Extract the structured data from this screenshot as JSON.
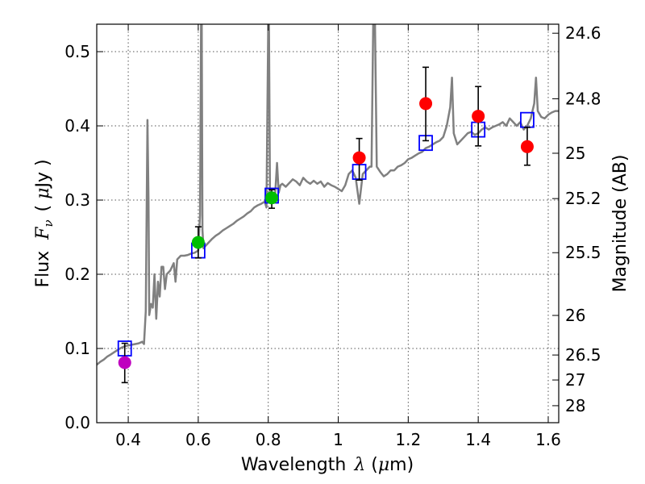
{
  "chart_data": {
    "type": "line",
    "xlabel_prefix": "Wavelength",
    "xlabel_symbol": "λ",
    "xlabel_unit_open": " (",
    "xlabel_unit_mu": "μ",
    "xlabel_unit_rest": "m)",
    "ylabel_prefix": "Flux",
    "ylabel_symbol": "F",
    "ylabel_subscript": "ν",
    "ylabel_unit_open": "( ",
    "ylabel_unit_mu": "μ",
    "ylabel_unit_rest": "Jy )",
    "y2label": "Magnitude (AB)",
    "xlim": [
      0.31,
      1.63
    ],
    "ylim": [
      0.0,
      0.537
    ],
    "grid": true,
    "xticks": [
      {
        "value": 0.4,
        "label": "0.4"
      },
      {
        "value": 0.6,
        "label": "0.6"
      },
      {
        "value": 0.8,
        "label": "0.8"
      },
      {
        "value": 1.0,
        "label": "1"
      },
      {
        "value": 1.2,
        "label": "1.2"
      },
      {
        "value": 1.4,
        "label": "1.4"
      },
      {
        "value": 1.6,
        "label": "1.6"
      }
    ],
    "yticks": [
      {
        "value": 0.0,
        "label": "0.0"
      },
      {
        "value": 0.1,
        "label": "0.1"
      },
      {
        "value": 0.2,
        "label": "0.2"
      },
      {
        "value": 0.3,
        "label": "0.3"
      },
      {
        "value": 0.4,
        "label": "0.4"
      },
      {
        "value": 0.5,
        "label": "0.5"
      }
    ],
    "y2ticks": [
      {
        "value": 24.6,
        "label": "24.6"
      },
      {
        "value": 24.8,
        "label": "24.8"
      },
      {
        "value": 25.0,
        "label": "25"
      },
      {
        "value": 25.2,
        "label": "25.2"
      },
      {
        "value": 25.5,
        "label": "25.5"
      },
      {
        "value": 26.0,
        "label": "26"
      },
      {
        "value": 26.5,
        "label": "26.5"
      },
      {
        "value": 27.0,
        "label": "27"
      },
      {
        "value": 28.0,
        "label": "28"
      }
    ],
    "model_spectrum": {
      "color": "#808080",
      "x": [
        0.31,
        0.32,
        0.33,
        0.34,
        0.35,
        0.36,
        0.37,
        0.38,
        0.39,
        0.4,
        0.41,
        0.42,
        0.43,
        0.44,
        0.445,
        0.45,
        0.455,
        0.458,
        0.46,
        0.465,
        0.47,
        0.475,
        0.48,
        0.485,
        0.49,
        0.495,
        0.5,
        0.505,
        0.51,
        0.52,
        0.53,
        0.535,
        0.54,
        0.55,
        0.56,
        0.57,
        0.58,
        0.59,
        0.6,
        0.605,
        0.608,
        0.61,
        0.612,
        0.615,
        0.62,
        0.63,
        0.64,
        0.65,
        0.66,
        0.67,
        0.68,
        0.69,
        0.7,
        0.71,
        0.72,
        0.73,
        0.74,
        0.75,
        0.76,
        0.77,
        0.78,
        0.79,
        0.795,
        0.8,
        0.802,
        0.805,
        0.81,
        0.815,
        0.82,
        0.825,
        0.83,
        0.835,
        0.84,
        0.85,
        0.86,
        0.87,
        0.88,
        0.89,
        0.9,
        0.91,
        0.92,
        0.93,
        0.94,
        0.95,
        0.96,
        0.97,
        0.98,
        0.99,
        1.0,
        1.01,
        1.02,
        1.03,
        1.04,
        1.05,
        1.06,
        1.07,
        1.08,
        1.09,
        1.095,
        1.1,
        1.105,
        1.11,
        1.12,
        1.13,
        1.14,
        1.15,
        1.16,
        1.17,
        1.18,
        1.19,
        1.2,
        1.21,
        1.22,
        1.23,
        1.24,
        1.25,
        1.26,
        1.27,
        1.28,
        1.29,
        1.3,
        1.31,
        1.32,
        1.325,
        1.33,
        1.34,
        1.35,
        1.36,
        1.37,
        1.38,
        1.39,
        1.4,
        1.41,
        1.42,
        1.43,
        1.44,
        1.45,
        1.46,
        1.47,
        1.48,
        1.49,
        1.5,
        1.51,
        1.52,
        1.53,
        1.54,
        1.55,
        1.56,
        1.565,
        1.57,
        1.58,
        1.59,
        1.6,
        1.61,
        1.62,
        1.63
      ],
      "y": [
        0.078,
        0.082,
        0.085,
        0.089,
        0.092,
        0.095,
        0.098,
        0.101,
        0.103,
        0.104,
        0.105,
        0.106,
        0.107,
        0.109,
        0.106,
        0.15,
        0.408,
        0.3,
        0.145,
        0.16,
        0.155,
        0.2,
        0.14,
        0.19,
        0.17,
        0.21,
        0.21,
        0.18,
        0.2,
        0.205,
        0.215,
        0.19,
        0.22,
        0.225,
        0.225,
        0.226,
        0.228,
        0.229,
        0.232,
        0.28,
        0.537,
        0.537,
        0.26,
        0.235,
        0.238,
        0.243,
        0.248,
        0.252,
        0.255,
        0.259,
        0.262,
        0.265,
        0.268,
        0.272,
        0.275,
        0.278,
        0.282,
        0.285,
        0.29,
        0.293,
        0.295,
        0.298,
        0.29,
        0.537,
        0.537,
        0.3,
        0.305,
        0.31,
        0.31,
        0.35,
        0.31,
        0.32,
        0.322,
        0.318,
        0.323,
        0.328,
        0.325,
        0.32,
        0.33,
        0.325,
        0.322,
        0.326,
        0.322,
        0.325,
        0.318,
        0.323,
        0.32,
        0.318,
        0.315,
        0.312,
        0.32,
        0.335,
        0.34,
        0.33,
        0.295,
        0.335,
        0.34,
        0.345,
        0.345,
        0.537,
        0.537,
        0.345,
        0.338,
        0.332,
        0.335,
        0.34,
        0.34,
        0.345,
        0.347,
        0.35,
        0.355,
        0.357,
        0.36,
        0.363,
        0.365,
        0.37,
        0.372,
        0.375,
        0.378,
        0.38,
        0.385,
        0.4,
        0.425,
        0.465,
        0.39,
        0.375,
        0.38,
        0.385,
        0.39,
        0.392,
        0.388,
        0.39,
        0.395,
        0.398,
        0.395,
        0.398,
        0.4,
        0.402,
        0.405,
        0.4,
        0.41,
        0.405,
        0.4,
        0.405,
        0.395,
        0.4,
        0.41,
        0.43,
        0.465,
        0.42,
        0.412,
        0.41,
        0.415,
        0.418,
        0.42,
        0.42
      ]
    },
    "series": [
      {
        "name": "model-photometry",
        "marker": "open-square",
        "color": "#0000ff",
        "points": [
          {
            "x": 0.39,
            "y": 0.1
          },
          {
            "x": 0.6,
            "y": 0.232
          },
          {
            "x": 0.81,
            "y": 0.306
          },
          {
            "x": 1.06,
            "y": 0.338
          },
          {
            "x": 1.25,
            "y": 0.377
          },
          {
            "x": 1.4,
            "y": 0.395
          },
          {
            "x": 1.54,
            "y": 0.408
          }
        ]
      },
      {
        "name": "optical-purple",
        "marker": "filled-circle",
        "color": "#bf00bf",
        "points": [
          {
            "x": 0.39,
            "y": 0.081,
            "err_lo": 0.054,
            "err_hi": 0.107
          }
        ]
      },
      {
        "name": "optical-green",
        "marker": "filled-circle",
        "color": "#00bf00",
        "points": [
          {
            "x": 0.6,
            "y": 0.243,
            "err_lo": 0.222,
            "err_hi": 0.264
          },
          {
            "x": 0.81,
            "y": 0.303,
            "err_lo": 0.289,
            "err_hi": 0.314
          }
        ]
      },
      {
        "name": "nir-red",
        "marker": "filled-circle",
        "color": "#ff0000",
        "points": [
          {
            "x": 1.06,
            "y": 0.357,
            "err_lo": 0.327,
            "err_hi": 0.383
          },
          {
            "x": 1.25,
            "y": 0.43,
            "err_lo": 0.38,
            "err_hi": 0.479
          },
          {
            "x": 1.4,
            "y": 0.413,
            "err_lo": 0.373,
            "err_hi": 0.453
          },
          {
            "x": 1.54,
            "y": 0.372,
            "err_lo": 0.347,
            "err_hi": 0.398
          }
        ]
      }
    ]
  }
}
